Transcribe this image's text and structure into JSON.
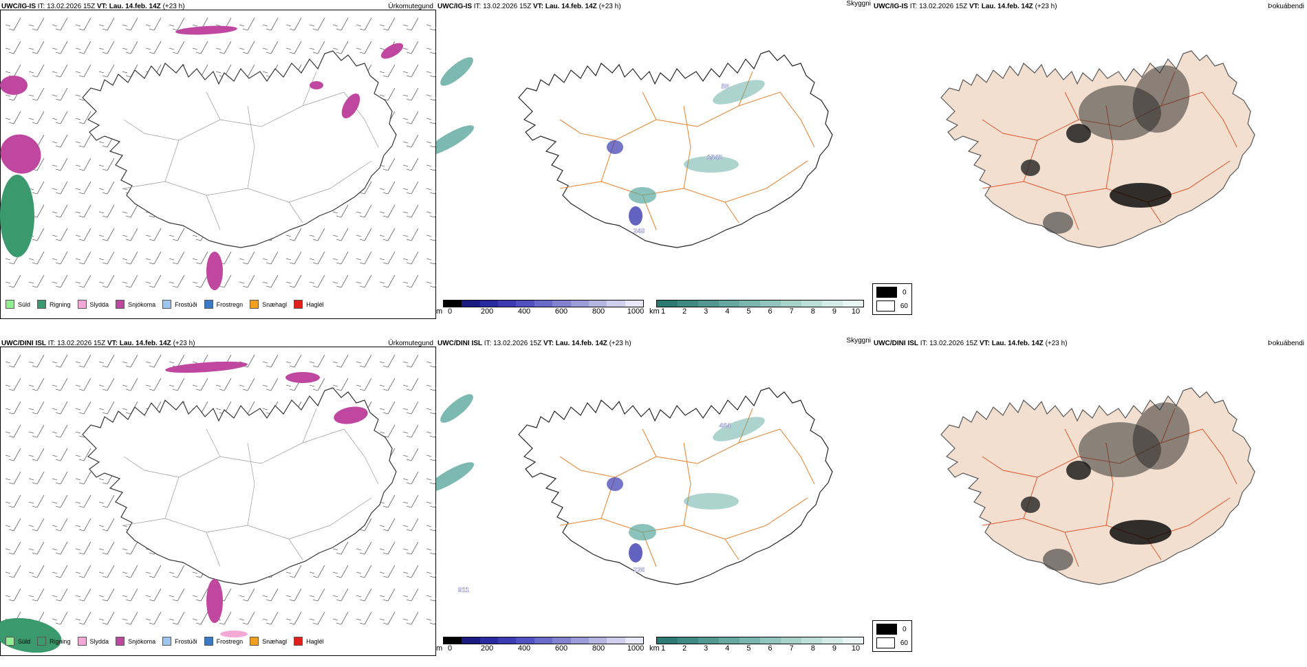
{
  "rows": [
    {
      "model": "UWC/IG-IS",
      "it": "IT: 13.02.2026 15Z",
      "vt_label": "VT:",
      "vt": "Lau. 14.feb. 14Z",
      "lead": "(+23 h)",
      "cloud_labels": [
        "58",
        "1543",
        "240"
      ]
    },
    {
      "model": "UWC/DINI ISL",
      "it": "IT: 13.02.2026 15Z",
      "vt_label": "VT:",
      "vt": "Lau. 14.feb. 14Z",
      "lead": "(+23 h)",
      "cloud_labels": [
        "464",
        "226",
        "911"
      ]
    }
  ],
  "panel_types": {
    "precip": "Úrkomutegund",
    "cloud": "Skyggni",
    "fog": "Þokuábendi"
  },
  "precip_legend": [
    {
      "label": "Súld",
      "color": "#90ee90"
    },
    {
      "label": "Rigning",
      "color": "#3a9a6e"
    },
    {
      "label": "Slydda",
      "color": "#f2a9d6"
    },
    {
      "label": "Snjókoma",
      "color": "#c0479f"
    },
    {
      "label": "Frostúði",
      "color": "#9cc5f0"
    },
    {
      "label": "Frostregn",
      "color": "#3b79c4"
    },
    {
      "label": "Snæhagl",
      "color": "#f0a020"
    },
    {
      "label": "Haglél",
      "color": "#e0201a"
    }
  ],
  "ceiling_bar": {
    "unit": "m",
    "ticks": [
      "0",
      "200",
      "400",
      "600",
      "800",
      "1000"
    ],
    "colors": [
      "#000000",
      "#1a1a80",
      "#2a2aa0",
      "#3c3cb0",
      "#5050c0",
      "#6a6ac8",
      "#8282d0",
      "#9c9cd8",
      "#b6b6e2",
      "#d0d0ee",
      "#e8e8f8"
    ]
  },
  "visibility_bar": {
    "unit": "km",
    "ticks": [
      "1",
      "2",
      "3",
      "4",
      "5",
      "6",
      "7",
      "8",
      "9",
      "10"
    ],
    "colors": [
      "#2c7a72",
      "#3e8a82",
      "#529890",
      "#66a8a0",
      "#7ab6ae",
      "#90c4bc",
      "#a6d2ca",
      "#bcdfd8",
      "#d2ebe6",
      "#e8f5f2"
    ]
  },
  "fog_legend": [
    {
      "value": "0",
      "color": "#000000"
    },
    {
      "value": "60",
      "color": "#ffffff"
    }
  ]
}
